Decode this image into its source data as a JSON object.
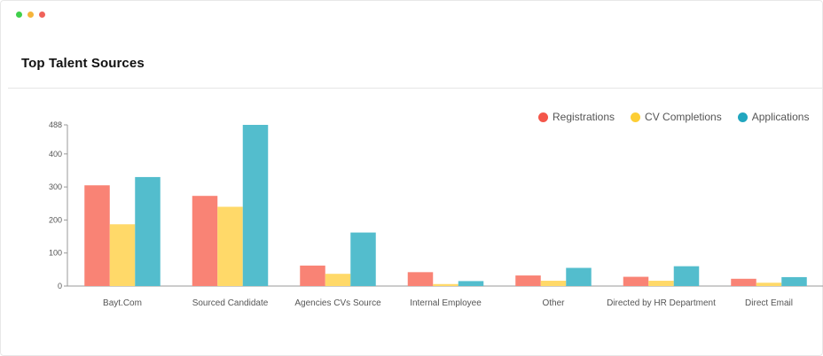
{
  "window": {
    "dots": [
      {
        "name": "window-dot-green-icon",
        "color": "#3fcf4b"
      },
      {
        "name": "window-dot-yellow-icon",
        "color": "#f5b43a"
      },
      {
        "name": "window-dot-red-icon",
        "color": "#f0625a"
      }
    ]
  },
  "header": {
    "title": "Top Talent Sources"
  },
  "chart_data": {
    "type": "bar",
    "title": "Top Talent Sources",
    "categories": [
      "Bayt.Com",
      "Sourced Candidate",
      "Agencies CVs Source",
      "Internal Employee",
      "Other",
      "Directed by HR Department",
      "Direct Email"
    ],
    "series": [
      {
        "name": "Registrations",
        "color": "#f98375",
        "legend_color": "#f4564a",
        "values": [
          305,
          273,
          62,
          42,
          32,
          28,
          22
        ]
      },
      {
        "name": "CV Completions",
        "color": "#ffd969",
        "legend_color": "#fdce35",
        "values": [
          187,
          240,
          37,
          6,
          16,
          16,
          10
        ]
      },
      {
        "name": "Applications",
        "color": "#53bdcd",
        "legend_color": "#21a6bf",
        "values": [
          330,
          488,
          162,
          15,
          55,
          60,
          27
        ]
      }
    ],
    "yticks": [
      0,
      100,
      200,
      300,
      400,
      488
    ],
    "ytick_labels": [
      "0",
      "100",
      "200",
      "300",
      "400",
      "488"
    ],
    "ylim": [
      0,
      488
    ],
    "legend_position": "top-right",
    "grid": false
  }
}
